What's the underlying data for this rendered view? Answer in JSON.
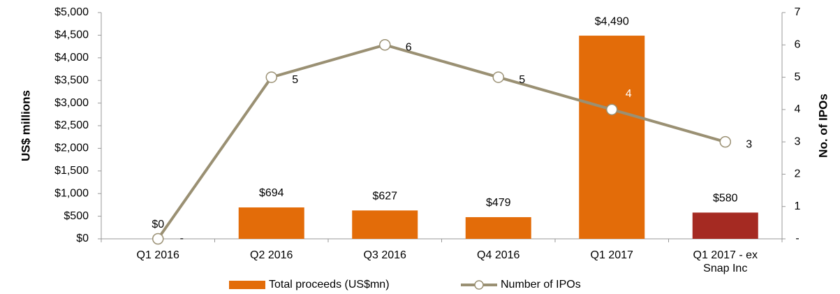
{
  "chart_data": {
    "type": "bar-line",
    "categories": [
      "Q1 2016",
      "Q2 2016",
      "Q3 2016",
      "Q4 2016",
      "Q1 2017",
      "Q1 2017 - ex Snap Inc"
    ],
    "series": [
      {
        "name": "Total proceeds (US$mn)",
        "type": "bar",
        "color": "#e36c09",
        "colors": [
          "#e36c09",
          "#e36c09",
          "#e36c09",
          "#e36c09",
          "#e36c09",
          "#a52a22"
        ],
        "values": [
          0,
          694,
          627,
          479,
          4490,
          580
        ],
        "value_labels": [
          "$0",
          "$694",
          "$627",
          "$479",
          "$4,490",
          "$580"
        ]
      },
      {
        "name": "Number of IPOs",
        "type": "line",
        "axis": "y2",
        "color": "#9a9073",
        "values": [
          0,
          5,
          6,
          5,
          4,
          3
        ],
        "value_labels": [
          "-",
          "5",
          "6",
          "5",
          "4",
          "3"
        ]
      }
    ],
    "ylabel": "US$ millions",
    "y2label": "No. of IPOs",
    "ylim": [
      0,
      5000
    ],
    "yticks": [
      {
        "value": 0,
        "label": "$0"
      },
      {
        "value": 500,
        "label": "$500"
      },
      {
        "value": 1000,
        "label": "$1,000"
      },
      {
        "value": 1500,
        "label": "$1,500"
      },
      {
        "value": 2000,
        "label": "$2,000"
      },
      {
        "value": 2500,
        "label": "$2,500"
      },
      {
        "value": 3000,
        "label": "$3,000"
      },
      {
        "value": 3500,
        "label": "$3,500"
      },
      {
        "value": 4000,
        "label": "$4,000"
      },
      {
        "value": 4500,
        "label": "$4,500"
      },
      {
        "value": 5000,
        "label": "$5,000"
      }
    ],
    "y2lim": [
      0,
      7
    ],
    "y2ticks": [
      {
        "value": 0,
        "label": "-"
      },
      1,
      2,
      3,
      4,
      5,
      6,
      7
    ],
    "legend": "bottom"
  }
}
